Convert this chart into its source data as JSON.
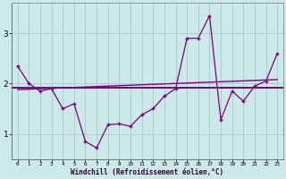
{
  "xlabel": "Windchill (Refroidissement éolien,°C)",
  "hours": [
    0,
    1,
    2,
    3,
    4,
    5,
    6,
    7,
    8,
    9,
    10,
    11,
    12,
    13,
    14,
    15,
    16,
    17,
    18,
    19,
    20,
    21,
    22,
    23
  ],
  "main_line": [
    2.35,
    2.0,
    1.85,
    1.9,
    1.5,
    1.6,
    0.85,
    0.72,
    1.18,
    1.2,
    1.15,
    1.38,
    1.5,
    1.75,
    1.9,
    2.9,
    2.9,
    3.35,
    1.28,
    1.85,
    1.65,
    1.95,
    2.05,
    2.6
  ],
  "flat_line_y": 1.92,
  "trend_start": 1.88,
  "trend_end": 2.08,
  "line_color": "#7b007b",
  "bg_color": "#cce8e8",
  "grid_color": "#a8d0d0",
  "ylim": [
    0.5,
    3.6
  ],
  "yticks": [
    1,
    2,
    3
  ],
  "xlim": [
    -0.5,
    23.5
  ],
  "figw": 3.2,
  "figh": 2.0,
  "dpi": 100
}
